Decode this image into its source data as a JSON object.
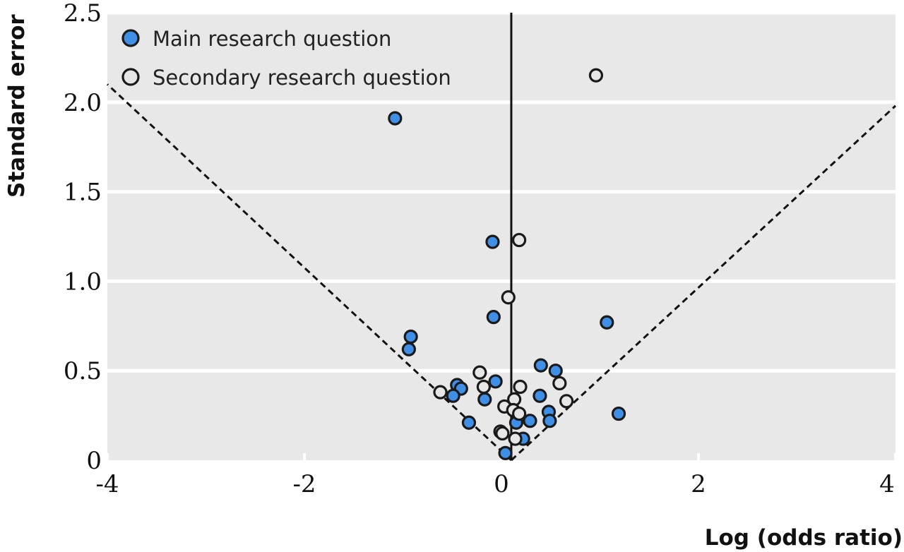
{
  "chart_data": {
    "type": "scatter",
    "xlabel": "Log (odds ratio)",
    "ylabel": "Standard error",
    "xlim": [
      -4,
      4
    ],
    "ylim": [
      0,
      2.5
    ],
    "x_ticks": [
      -4,
      -2,
      0,
      2,
      4
    ],
    "x_tick_labels": [
      "-4",
      "-2",
      "0",
      "2",
      "4"
    ],
    "y_ticks": [
      0,
      0.5,
      1.0,
      1.5,
      2.0,
      2.5
    ],
    "y_tick_labels": [
      "0",
      "0.5",
      "1.0",
      "1.5",
      "2.0",
      "2.5"
    ],
    "y_axis_reversed": false,
    "grid": "horizontal",
    "legend_position": "top-left",
    "reference_line": {
      "type": "vertical",
      "x": 0.1
    },
    "funnel_lines": {
      "type": "pseudo-95%-confidence",
      "apex": [
        0.1,
        0
      ],
      "lower_left": [
        -4,
        2.1
      ],
      "lower_right": [
        4,
        1.98
      ]
    },
    "series": [
      {
        "name": "Main research question",
        "color": "#3f8fe6",
        "points": [
          {
            "x": -1.08,
            "y": 1.91
          },
          {
            "x": -0.09,
            "y": 1.22
          },
          {
            "x": -0.08,
            "y": 0.8
          },
          {
            "x": -0.92,
            "y": 0.69
          },
          {
            "x": -0.94,
            "y": 0.62
          },
          {
            "x": 1.07,
            "y": 0.77
          },
          {
            "x": 0.4,
            "y": 0.53
          },
          {
            "x": 0.55,
            "y": 0.5
          },
          {
            "x": 0.39,
            "y": 0.36
          },
          {
            "x": -0.45,
            "y": 0.42
          },
          {
            "x": -0.41,
            "y": 0.4
          },
          {
            "x": -0.49,
            "y": 0.36
          },
          {
            "x": -0.06,
            "y": 0.44
          },
          {
            "x": -0.17,
            "y": 0.34
          },
          {
            "x": -0.33,
            "y": 0.21
          },
          {
            "x": 0.48,
            "y": 0.27
          },
          {
            "x": 0.49,
            "y": 0.22
          },
          {
            "x": 0.29,
            "y": 0.22
          },
          {
            "x": 0.15,
            "y": 0.21
          },
          {
            "x": 0.22,
            "y": 0.12
          },
          {
            "x": 0.04,
            "y": 0.04
          },
          {
            "x": 1.19,
            "y": 0.26
          }
        ]
      },
      {
        "name": "Secondary research question",
        "color": "#e6e6e6",
        "points": [
          {
            "x": 0.96,
            "y": 2.15
          },
          {
            "x": 0.18,
            "y": 1.23
          },
          {
            "x": 0.07,
            "y": 0.91
          },
          {
            "x": -0.22,
            "y": 0.49
          },
          {
            "x": -0.18,
            "y": 0.41
          },
          {
            "x": -0.62,
            "y": 0.38
          },
          {
            "x": 0.19,
            "y": 0.41
          },
          {
            "x": 0.59,
            "y": 0.43
          },
          {
            "x": 0.66,
            "y": 0.33
          },
          {
            "x": 0.13,
            "y": 0.34
          },
          {
            "x": 0.03,
            "y": 0.3
          },
          {
            "x": 0.12,
            "y": 0.28
          },
          {
            "x": 0.18,
            "y": 0.26
          },
          {
            "x": -0.01,
            "y": 0.16
          },
          {
            "x": 0.01,
            "y": 0.15
          },
          {
            "x": 0.14,
            "y": 0.12
          }
        ]
      }
    ]
  }
}
